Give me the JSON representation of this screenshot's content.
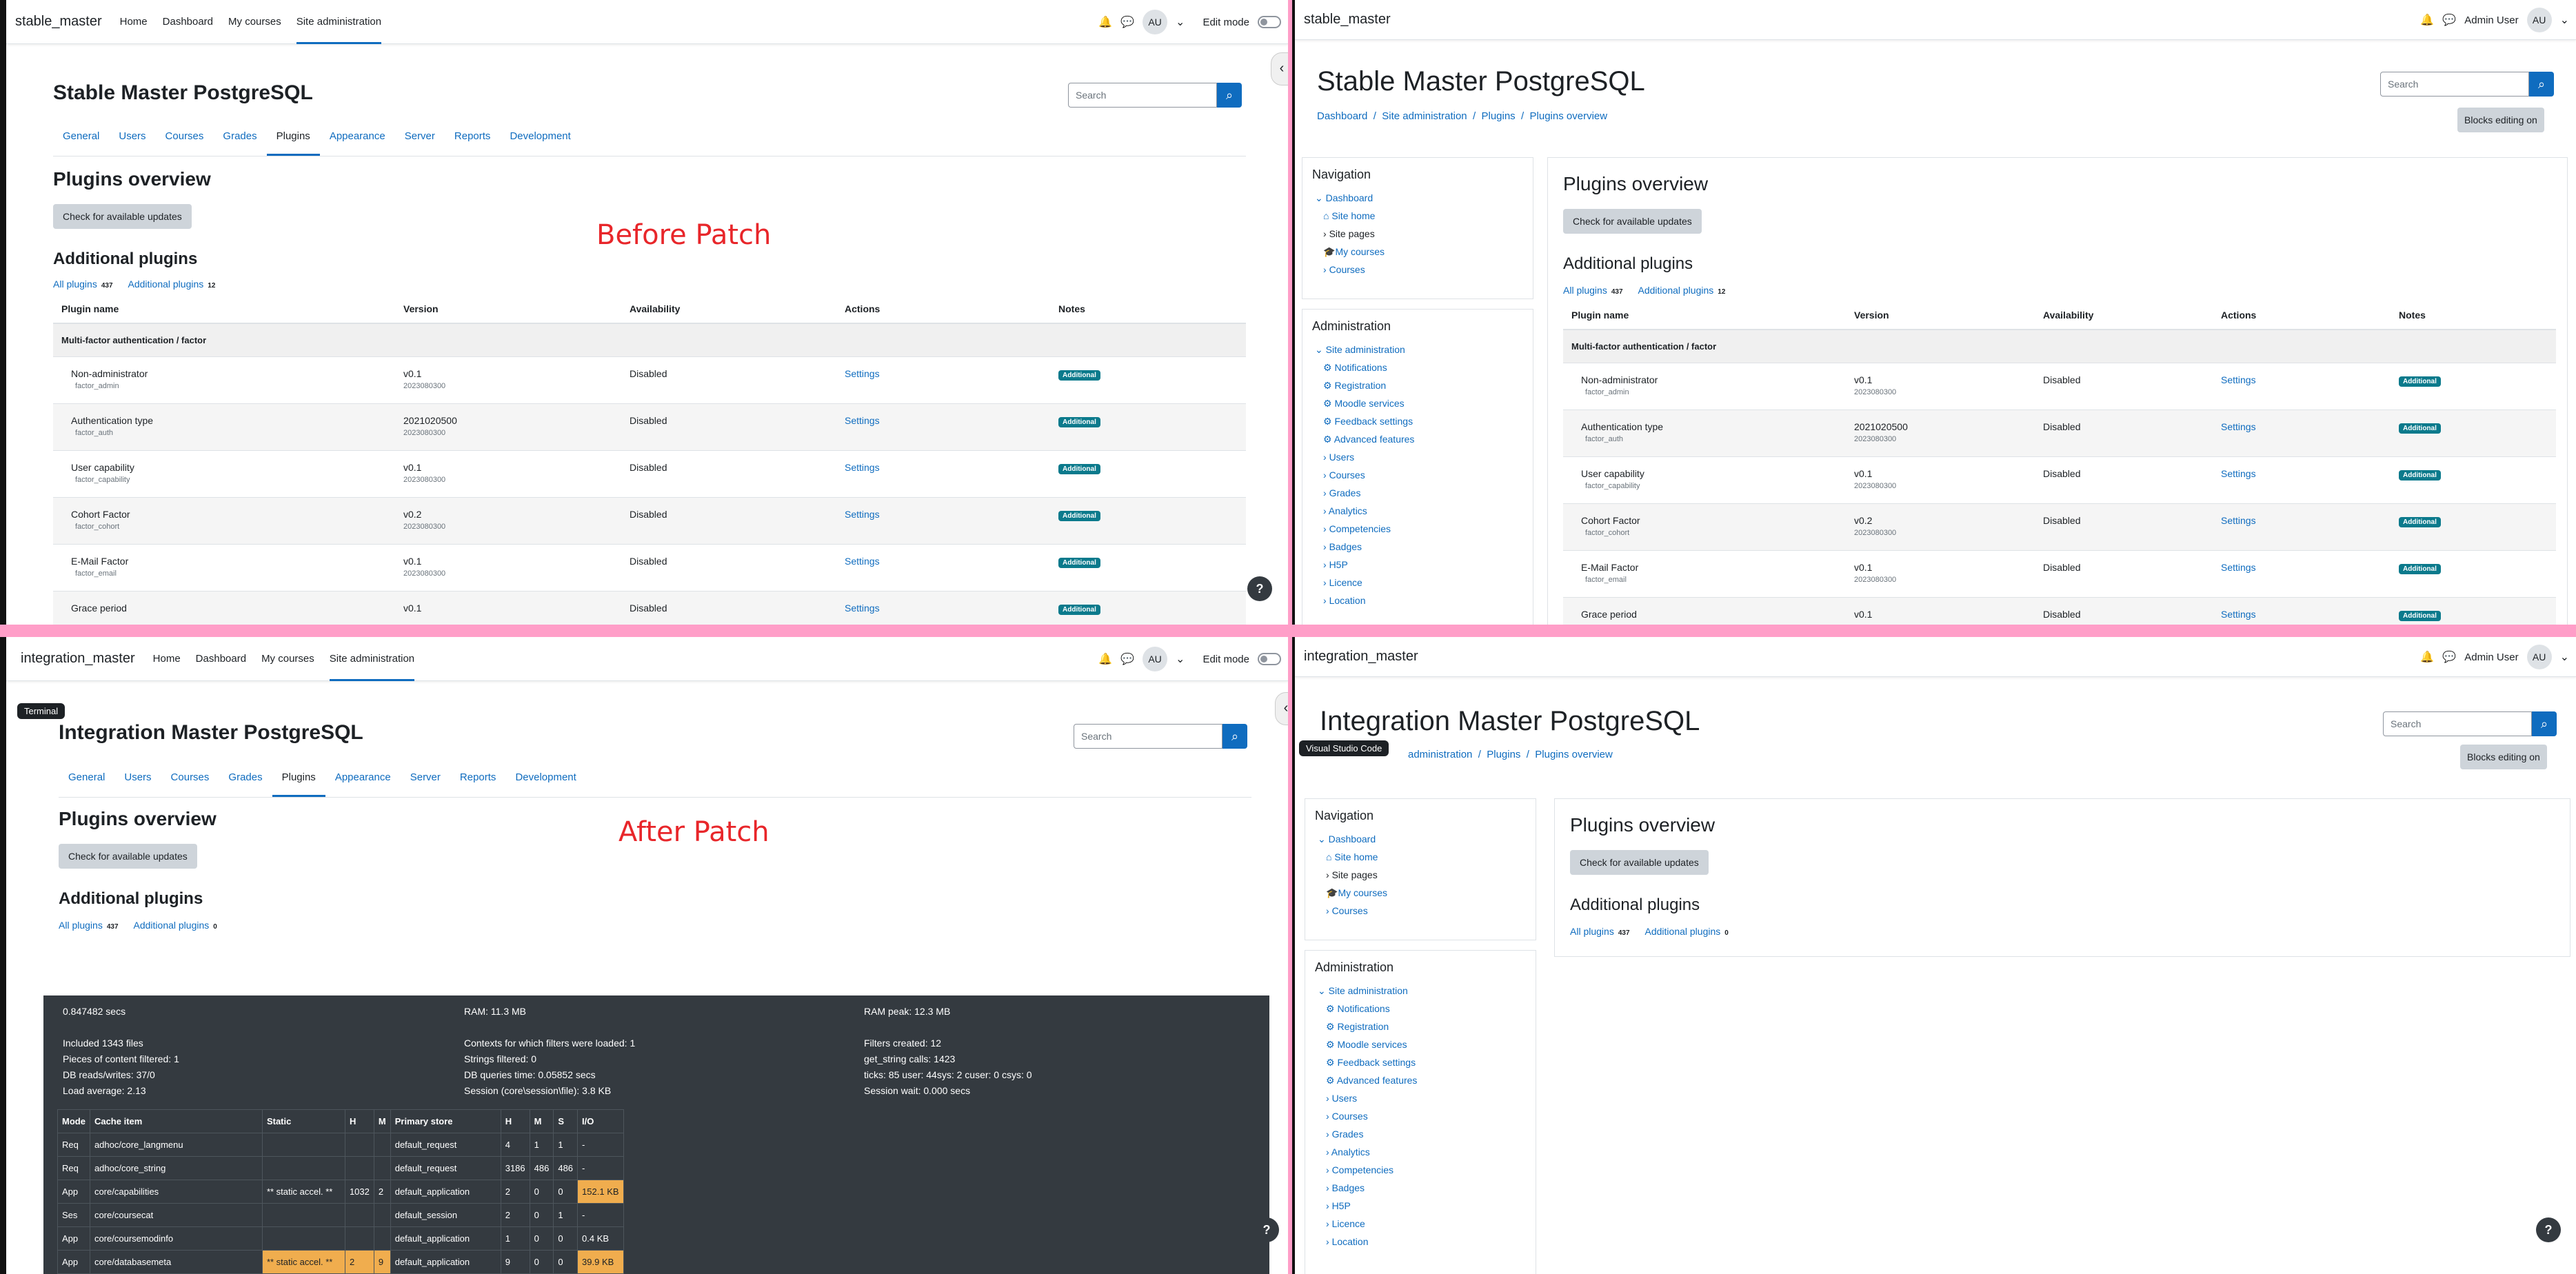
{
  "stable": {
    "brand": "stable_master",
    "site_title": "Stable Master PostgreSQL"
  },
  "integration": {
    "brand": "integration_master",
    "site_title": "Integration Master PostgreSQL"
  },
  "nav": {
    "links": [
      "Home",
      "Dashboard",
      "My courses",
      "Site administration"
    ],
    "edit_mode": "Edit mode",
    "avatar": "AU",
    "user_name": "Admin User"
  },
  "search_placeholder": "Search",
  "tabs": [
    "General",
    "Users",
    "Courses",
    "Grades",
    "Plugins",
    "Appearance",
    "Server",
    "Reports",
    "Development"
  ],
  "page": {
    "heading": "Plugins overview",
    "check_updates": "Check for available updates",
    "additional_heading": "Additional plugins",
    "all_plugins": "All plugins",
    "all_count": "437",
    "additional_link": "Additional plugins",
    "additional_count_before": "12",
    "additional_count_after": "0",
    "blocks_editing": "Blocks editing on"
  },
  "breadcrumb": [
    "Dashboard",
    "Site administration",
    "Plugins",
    "Plugins overview"
  ],
  "breadcrumb_partial": [
    "administration",
    "Plugins",
    "Plugins overview"
  ],
  "labels": {
    "before": "Before Patch",
    "after": "After Patch",
    "terminal": "Terminal",
    "vscode": "Visual Studio Code",
    "help": "?"
  },
  "table": {
    "headers": [
      "Plugin name",
      "Version",
      "Availability",
      "Actions",
      "Notes"
    ],
    "group": "Multi-factor authentication / factor",
    "rows": [
      {
        "name": "Non-administrator",
        "component": "factor_admin",
        "version": "v0.1",
        "build": "2023080300",
        "availability": "Disabled",
        "action": "Settings",
        "note": "Additional"
      },
      {
        "name": "Authentication type",
        "component": "factor_auth",
        "version": "2021020500",
        "build": "2023080300",
        "availability": "Disabled",
        "action": "Settings",
        "note": "Additional"
      },
      {
        "name": "User capability",
        "component": "factor_capability",
        "version": "v0.1",
        "build": "2023080300",
        "availability": "Disabled",
        "action": "Settings",
        "note": "Additional"
      },
      {
        "name": "Cohort Factor",
        "component": "factor_cohort",
        "version": "v0.2",
        "build": "2023080300",
        "availability": "Disabled",
        "action": "Settings",
        "note": "Additional"
      },
      {
        "name": "E-Mail Factor",
        "component": "factor_email",
        "version": "v0.1",
        "build": "2023080300",
        "availability": "Disabled",
        "action": "Settings",
        "note": "Additional"
      },
      {
        "name": "Grace period",
        "component": "",
        "version": "v0.1",
        "build": "",
        "availability": "Disabled",
        "action": "Settings",
        "note": "Additional"
      }
    ]
  },
  "navblock": {
    "title": "Navigation",
    "items": [
      "Dashboard",
      "Site home",
      "Site pages",
      "My courses",
      "Courses"
    ]
  },
  "adminblock": {
    "title": "Administration",
    "items": [
      "Site administration",
      "Notifications",
      "Registration",
      "Moodle services",
      "Feedback settings",
      "Advanced features",
      "Users",
      "Courses",
      "Grades",
      "Analytics",
      "Competencies",
      "Badges",
      "H5P",
      "Licence",
      "Location"
    ]
  },
  "perf": {
    "col1": [
      "0.847482 secs",
      "",
      "Included 1343 files",
      "Pieces of content filtered: 1",
      "DB reads/writes: 37/0",
      "Load average: 2.13"
    ],
    "col2": [
      "RAM: 11.3 MB",
      "",
      "Contexts for which filters were loaded: 1",
      "Strings filtered: 0",
      "DB queries time: 0.05852 secs",
      "Session (core\\session\\file): 3.8 KB"
    ],
    "col3": [
      "RAM peak: 12.3 MB",
      "",
      "Filters created: 12",
      "get_string calls: 1423",
      "ticks: 85 user: 44sys: 2 cuser: 0 csys: 0",
      "Session wait: 0.000 secs"
    ],
    "headers": [
      "Mode",
      "Cache item",
      "Static",
      "H",
      "M",
      "Primary store",
      "H",
      "M",
      "S",
      "I/O"
    ],
    "rows": [
      [
        "Req",
        "adhoc/core_langmenu",
        "",
        "",
        "",
        "default_request",
        "4",
        "1",
        "1",
        "-"
      ],
      [
        "Req",
        "adhoc/core_string",
        "",
        "",
        "",
        "default_request",
        "3186",
        "486",
        "486",
        "-"
      ],
      [
        "App",
        "core/capabilities",
        "** static accel. **",
        "1032",
        "2",
        "default_application",
        "2",
        "0",
        "0",
        "152.1 KB"
      ],
      [
        "Ses",
        "core/coursecat",
        "",
        "",
        "",
        "default_session",
        "2",
        "0",
        "1",
        "-"
      ],
      [
        "App",
        "core/coursemodinfo",
        "",
        "",
        "",
        "default_application",
        "1",
        "0",
        "0",
        "0.4 KB"
      ],
      [
        "App",
        "core/databasemeta",
        "** static accel. **",
        "2",
        "9",
        "default_application",
        "9",
        "0",
        "0",
        "39.9 KB"
      ]
    ]
  }
}
